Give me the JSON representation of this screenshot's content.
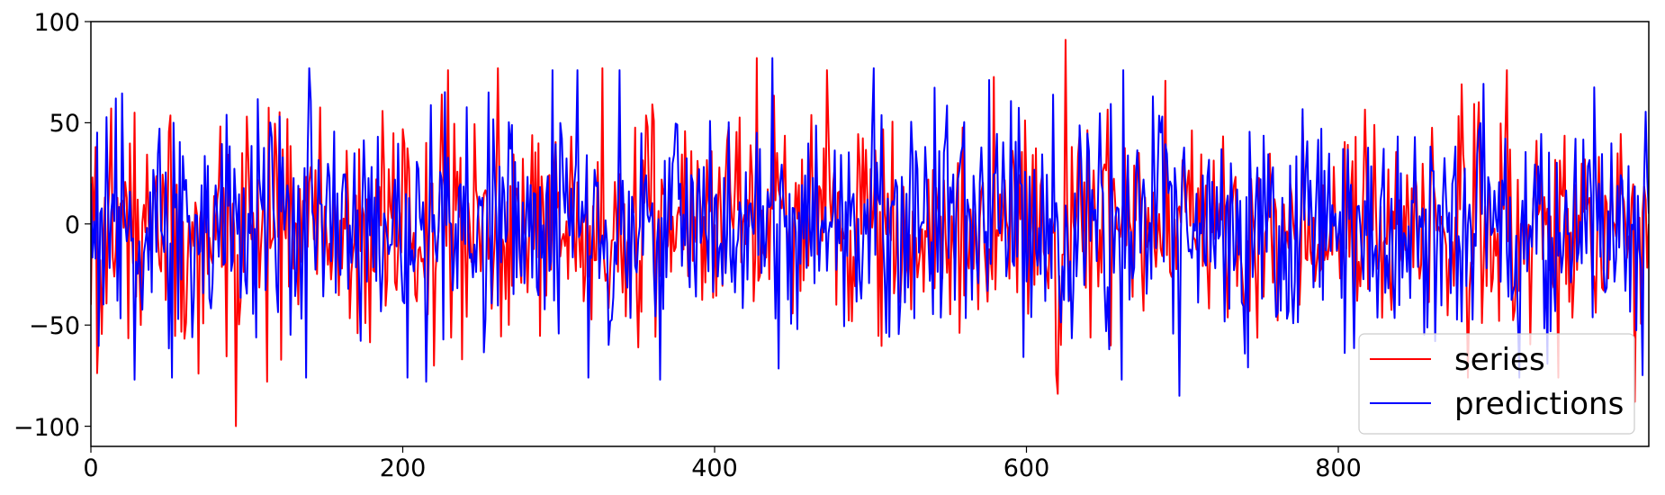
{
  "chart_data": {
    "type": "line",
    "title": "",
    "xlabel": "",
    "ylabel": "",
    "xlim": [
      0,
      999
    ],
    "ylim": [
      -110,
      100
    ],
    "xticks": [
      0,
      200,
      400,
      600,
      800
    ],
    "yticks": [
      -100,
      -50,
      0,
      50,
      100
    ],
    "xtick_labels": [
      "0",
      "200",
      "400",
      "600",
      "800"
    ],
    "ytick_labels": [
      "−100",
      "−50",
      "0",
      "50",
      "100"
    ],
    "grid": false,
    "legend_position": "lower-right",
    "series": [
      {
        "name": "series",
        "color": "#ff0000",
        "n_points": 1000,
        "approx_std": 27,
        "anchors": [
          {
            "x": 0,
            "y": -40
          },
          {
            "x": 3,
            "y": 38
          },
          {
            "x": 5,
            "y": -51
          },
          {
            "x": 28,
            "y": 55
          },
          {
            "x": 32,
            "y": -50
          },
          {
            "x": 69,
            "y": -74
          },
          {
            "x": 93,
            "y": -100
          },
          {
            "x": 113,
            "y": -78
          },
          {
            "x": 261,
            "y": 77
          },
          {
            "x": 328,
            "y": 77
          },
          {
            "x": 427,
            "y": 82
          },
          {
            "x": 620,
            "y": -84
          },
          {
            "x": 625,
            "y": 91
          },
          {
            "x": 879,
            "y": 69
          },
          {
            "x": 990,
            "y": -88
          },
          {
            "x": 999,
            "y": 0
          }
        ]
      },
      {
        "name": "predictions",
        "color": "#0000ff",
        "n_points": 1000,
        "approx_std": 28,
        "anchors": [
          {
            "x": 0,
            "y": 20
          },
          {
            "x": 16,
            "y": 62
          },
          {
            "x": 28,
            "y": -77
          },
          {
            "x": 140,
            "y": 77
          },
          {
            "x": 215,
            "y": -78
          },
          {
            "x": 365,
            "y": -77
          },
          {
            "x": 437,
            "y": 82
          },
          {
            "x": 502,
            "y": 77
          },
          {
            "x": 661,
            "y": -77
          },
          {
            "x": 698,
            "y": -85
          },
          {
            "x": 999,
            "y": 5
          }
        ]
      }
    ]
  }
}
